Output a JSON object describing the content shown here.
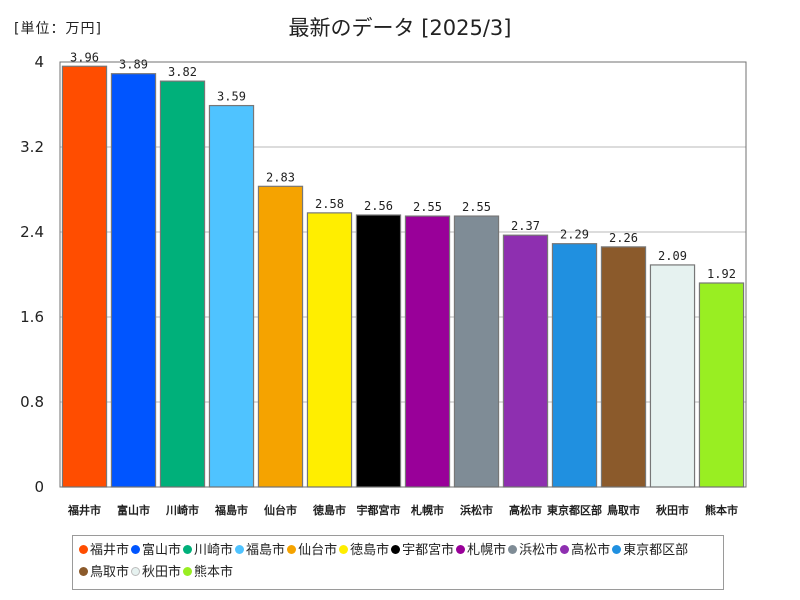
{
  "chart_data": {
    "type": "bar",
    "title": "最新のデータ [2025/3]",
    "unit_label": "[単位：万円]",
    "ylim": [
      0,
      4
    ],
    "yticks": [
      "0",
      "0.8",
      "1.6",
      "2.4",
      "3.2",
      "4"
    ],
    "grid": true,
    "legend_position": "bottom",
    "categories": [
      "福井市",
      "富山市",
      "川崎市",
      "福島市",
      "仙台市",
      "徳島市",
      "宇都宮市",
      "札幌市",
      "浜松市",
      "高松市",
      "東京都区部",
      "鳥取市",
      "秋田市",
      "熊本市"
    ],
    "values": [
      3.96,
      3.89,
      3.82,
      3.59,
      2.83,
      2.58,
      2.56,
      2.55,
      2.55,
      2.37,
      2.29,
      2.26,
      2.09,
      1.92
    ],
    "value_labels": [
      "3.96",
      "3.89",
      "3.82",
      "3.59",
      "2.83",
      "2.58",
      "2.56",
      "2.55",
      "2.55",
      "2.37",
      "2.29",
      "2.26",
      "2.09",
      "1.92"
    ],
    "colors": [
      "#ff4d00",
      "#0055ff",
      "#00b07a",
      "#4fc3ff",
      "#f5a300",
      "#ffee00",
      "#000000",
      "#990099",
      "#7f8c96",
      "#8e2fb0",
      "#2090e0",
      "#8b5a2b",
      "#e6f2f0",
      "#99ee22"
    ]
  }
}
